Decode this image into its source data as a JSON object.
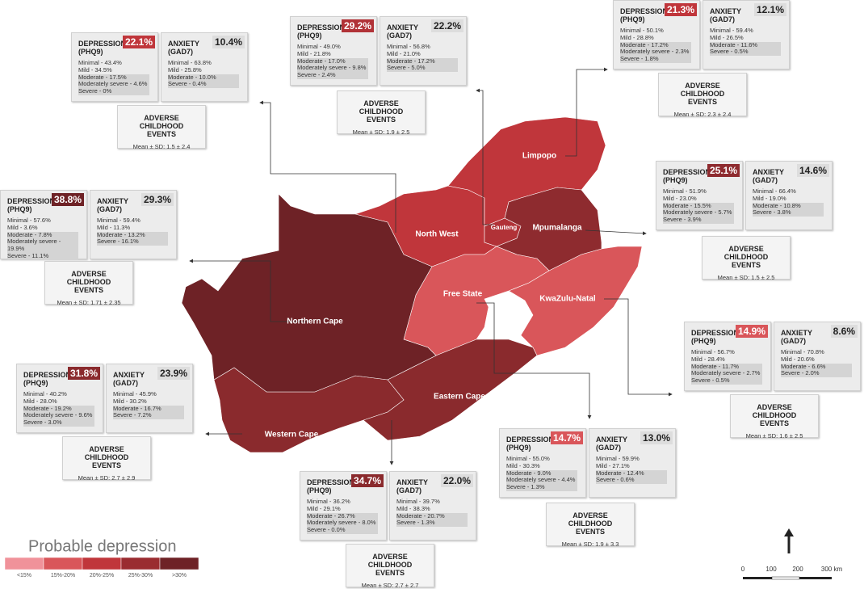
{
  "labels": {
    "depression": "DEPRESSION",
    "phq": "(PHQ9)",
    "anxiety": "ANXIETY",
    "gad": "(GAD7)",
    "ace": "ADVERSE CHILDHOOD EVENTS"
  },
  "provinces": [
    {
      "name": "North West",
      "color": "#c0363b",
      "depression": {
        "value": "22.1%",
        "breakdown": [
          "Minimal - 43.4%",
          "Mild - 34.5%",
          "Moderate - 17.5%",
          "Moderately severe - 4.6%",
          "Severe - 0%"
        ]
      },
      "anxiety": {
        "value": "10.4%",
        "breakdown": [
          "Minimal - 63.8%",
          "Mild - 25.8%",
          "Moderate - 10.0%",
          "Severe - 0.4%"
        ]
      },
      "ace": "Mean ± SD: 1.5 ± 2.4"
    },
    {
      "name": "Gauteng",
      "color": "#b13237",
      "depression": {
        "value": "29.2%",
        "breakdown": [
          "Minimal - 49.0%",
          "Mild - 21.8%",
          "Moderate - 17.0%",
          "Moderately severe - 9.8%",
          "Severe - 2.4%"
        ]
      },
      "anxiety": {
        "value": "22.2%",
        "breakdown": [
          "Minimal - 56.8%",
          "Mild - 21.0%",
          "Moderate - 17.2%",
          "Severe - 5.0%"
        ]
      },
      "ace": "Mean ± SD: 1.9 ± 2.5"
    },
    {
      "name": "Limpopo",
      "color": "#c0363b",
      "depression": {
        "value": "21.3%",
        "breakdown": [
          "Minimal - 50.1%",
          "Mild - 28.8%",
          "Moderate - 17.2%",
          "Moderately severe - 2.3%",
          "Severe - 1.8%"
        ]
      },
      "anxiety": {
        "value": "12.1%",
        "breakdown": [
          "Minimal - 59.4%",
          "Mild - 26.5%",
          "Moderate - 11.6%",
          "Severe - 0.5%"
        ]
      },
      "ace": "Mean ± SD: 2.3 ± 2.4"
    },
    {
      "name": "Mpumalanga",
      "color": "#8e2b2f",
      "depression": {
        "value": "25.1%",
        "breakdown": [
          "Minimal - 51.9%",
          "Mild - 23.0%",
          "Moderate - 15.5%",
          "Moderately severe - 5.7%",
          "Severe - 3.9%"
        ]
      },
      "anxiety": {
        "value": "14.6%",
        "breakdown": [
          "Minimal - 66.4%",
          "Mild - 19.0%",
          "Moderate - 10.8%",
          "Severe - 3.8%"
        ]
      },
      "ace": "Mean ± SD: 1.5 ± 2.5"
    },
    {
      "name": "KwaZulu-Natal",
      "color": "#d9565a",
      "depression": {
        "value": "14.9%",
        "breakdown": [
          "Minimal - 56.7%",
          "Mild - 28.4%",
          "Moderate - 11.7%",
          "Moderately severe - 2.7%",
          "Severe - 0.5%"
        ]
      },
      "anxiety": {
        "value": "8.6%",
        "breakdown": [
          "Minimal - 70.8%",
          "Mild - 20.6%",
          "Moderate - 6.6%",
          "Severe - 2.0%"
        ]
      },
      "ace": "Mean ± SD: 1.6 ± 2.5"
    },
    {
      "name": "Free State",
      "color": "#d9565a",
      "depression": {
        "value": "14.7%",
        "breakdown": [
          "Minimal - 55.0%",
          "Mild - 30.3%",
          "Moderate - 9.0%",
          "Moderately severe - 4.4%",
          "Severe - 1.3%"
        ]
      },
      "anxiety": {
        "value": "13.0%",
        "breakdown": [
          "Minimal - 59.9%",
          "Mild - 27.1%",
          "Moderate - 12.4%",
          "Severe - 0.6%"
        ]
      },
      "ace": "Mean ± SD: 1.9 ± 3.3"
    },
    {
      "name": "Eastern Cape",
      "color": "#8a2a2d",
      "depression": {
        "value": "34.7%",
        "breakdown": [
          "Minimal - 36.2%",
          "Mild - 29.1%",
          "Moderate - 26.7%",
          "Moderately severe - 8.0%",
          "Severe - 0.0%"
        ]
      },
      "anxiety": {
        "value": "22.0%",
        "breakdown": [
          "Minimal - 39.7%",
          "Mild - 38.3%",
          "Moderate - 20.7%",
          "Severe - 1.3%"
        ]
      },
      "ace": "Mean ± SD: 2.7 ± 2.7"
    },
    {
      "name": "Western Cape",
      "color": "#8a2a2d",
      "depression": {
        "value": "31.8%",
        "breakdown": [
          "Minimal - 40.2%",
          "Mild - 28.0%",
          "Moderate - 19.2%",
          "Moderately severe - 9.6%",
          "Severe - 3.0%"
        ]
      },
      "anxiety": {
        "value": "23.9%",
        "breakdown": [
          "Minimal - 45.9%",
          "Mild - 30.2%",
          "Moderate - 16.7%",
          "Severe - 7.2%"
        ]
      },
      "ace": "Mean ± SD: 2.7 ± 2.9"
    },
    {
      "name": "Northern Cape",
      "color": "#6e2226",
      "depression": {
        "value": "38.8%",
        "breakdown": [
          "Minimal - 57.6%",
          "Mild - 3.6%",
          "Moderate - 7.8%",
          "Moderately severe - 19.9%",
          "Severe - 11.1%"
        ]
      },
      "anxiety": {
        "value": "29.3%",
        "breakdown": [
          "Minimal - 59.4%",
          "Mild - 11.3%",
          "Moderate - 13.2%",
          "Severe - 16.1%"
        ]
      },
      "ace": "Mean ± SD: 1.71 ± 2.35"
    }
  ],
  "legend": {
    "title": "Probable depression",
    "items": [
      {
        "label": "<15%",
        "color": "#f0929a"
      },
      {
        "label": "15%-20%",
        "color": "#d9565a"
      },
      {
        "label": "20%-25%",
        "color": "#c0363b"
      },
      {
        "label": "25%-30%",
        "color": "#9a2c30"
      },
      {
        "label": ">30%",
        "color": "#6e2226"
      }
    ]
  },
  "scale_bar": {
    "labels": [
      "0",
      "100",
      "200",
      "300 km"
    ]
  }
}
